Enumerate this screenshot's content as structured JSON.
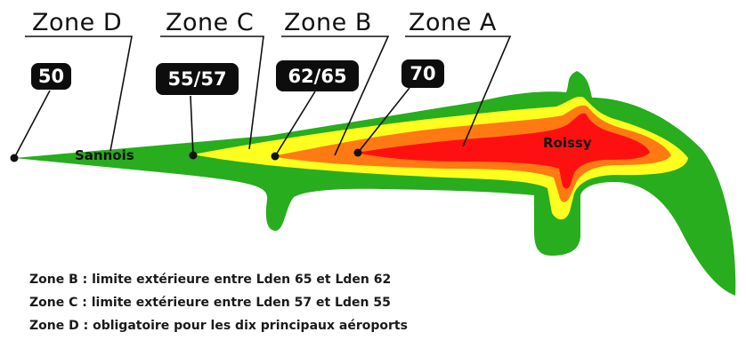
{
  "colors": {
    "zone_d": "#27ad1d",
    "zone_c": "#ffff1f",
    "zone_b": "#ff7a13",
    "zone_a": "#ff1010",
    "badge": "#0d0d0d",
    "badge_text": "#ffffff"
  },
  "zones": [
    {
      "title": "Zone D",
      "badge": "50"
    },
    {
      "title": "Zone C",
      "badge": "55/57"
    },
    {
      "title": "Zone B",
      "badge": "62/65"
    },
    {
      "title": "Zone A",
      "badge": "70"
    }
  ],
  "places": {
    "sannois": "Sannois",
    "roissy": "Roissy"
  },
  "legend": [
    "Zone B : limite extérieure entre Lden 65 et Lden 62",
    "Zone C : limite extérieure entre Lden 57 et Lden 55",
    "Zone D : obligatoire pour les dix principaux aéroports"
  ]
}
